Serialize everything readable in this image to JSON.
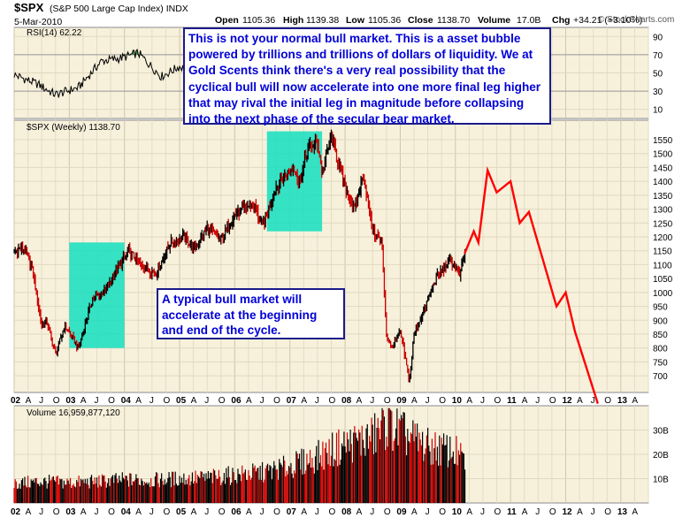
{
  "header": {
    "symbol": "$SPX",
    "description": "(S&P 500 Large Cap Index) INDX",
    "date": "5-Mar-2010",
    "open_label": "Open",
    "open": "1105.36",
    "high_label": "High",
    "high": "1139.38",
    "low_label": "Low",
    "low": "1105.36",
    "close_label": "Close",
    "close": "1138.70",
    "volume_label": "Volume",
    "volume": "17.0B",
    "chg_label": "Chg",
    "chg": "+34.21 (+3.10%)",
    "brand": "© StockCharts.com"
  },
  "annotations": {
    "top": "This is not your normal bull market. This is a asset bubble powered by trillions and trillions of dollars of liquidity. We at Gold Scents think there's a very real possibility that the cyclical bull will now accelerate into one more final leg higher that may rival the initial leg in magnitude before collapsing into the next phase of the secular bear market.",
    "bottom": "A typical bull market will accelerate at the beginning and end of the cycle."
  },
  "chart_data": [
    {
      "type": "line",
      "panel": "rsi",
      "legend": "RSI(14) 62.22",
      "ylim": [
        0,
        100
      ],
      "yticks": [
        10,
        30,
        50,
        70,
        90
      ],
      "reference_lines": [
        30,
        70
      ],
      "x": [
        "2002-01",
        "2002-06",
        "2002-10",
        "2003-03",
        "2003-08",
        "2003-12",
        "2004-04",
        "2004-09",
        "2005-01",
        "2005-05",
        "2005-10"
      ],
      "values": [
        48,
        38,
        26,
        34,
        63,
        66,
        72,
        46,
        57,
        49,
        60
      ],
      "colors": {
        "line": "#000000",
        "overbought_fill": "#2e8b2e"
      }
    },
    {
      "type": "line",
      "panel": "price",
      "legend": "$SPX (Weekly) 1138.70",
      "ylim": [
        640,
        1620
      ],
      "yticks": [
        700,
        750,
        800,
        850,
        900,
        950,
        1000,
        1050,
        1100,
        1150,
        1200,
        1250,
        1300,
        1350,
        1400,
        1450,
        1500,
        1550
      ],
      "series": [
        {
          "role": "history",
          "x": [
            "2002-01",
            "2002-03",
            "2002-05",
            "2002-07",
            "2002-08",
            "2002-10",
            "2002-12",
            "2003-03",
            "2003-06",
            "2003-09",
            "2003-12",
            "2004-02",
            "2004-05",
            "2004-08",
            "2004-11",
            "2005-02",
            "2005-04",
            "2005-07",
            "2005-10",
            "2006-01",
            "2006-05",
            "2006-07",
            "2006-10",
            "2006-12",
            "2007-02",
            "2007-03",
            "2007-05",
            "2007-07",
            "2007-08",
            "2007-10",
            "2008-01",
            "2008-03",
            "2008-05",
            "2008-07",
            "2008-09",
            "2008-10",
            "2008-11",
            "2009-01",
            "2009-03",
            "2009-04",
            "2009-06",
            "2009-09",
            "2009-12",
            "2010-02",
            "2010-03"
          ],
          "values": [
            1150,
            1160,
            1080,
            880,
            900,
            780,
            880,
            800,
            975,
            1010,
            1100,
            1150,
            1090,
            1070,
            1180,
            1200,
            1160,
            1230,
            1190,
            1280,
            1320,
            1240,
            1380,
            1420,
            1450,
            1390,
            1520,
            1540,
            1430,
            1560,
            1380,
            1300,
            1420,
            1220,
            1180,
            850,
            800,
            860,
            680,
            850,
            930,
            1060,
            1115,
            1060,
            1140
          ]
        },
        {
          "role": "projection",
          "x": [
            "2010-03",
            "2010-05",
            "2010-06",
            "2010-08",
            "2010-10",
            "2011-01",
            "2011-03",
            "2011-05",
            "2011-08",
            "2011-11",
            "2012-01",
            "2012-03",
            "2012-08"
          ],
          "values": [
            1140,
            1220,
            1180,
            1440,
            1360,
            1400,
            1250,
            1290,
            1120,
            950,
            1000,
            860,
            600
          ]
        }
      ],
      "highlight_boxes": [
        {
          "x": [
            "2003-01",
            "2004-01"
          ],
          "y": [
            800,
            1180
          ]
        },
        {
          "x": [
            "2006-08",
            "2007-08"
          ],
          "y": [
            1220,
            1580
          ]
        }
      ],
      "colors": {
        "history": "#000000",
        "down_bars": "#cc0000",
        "projection": "#ff0000",
        "highlight": "#1fe0c0",
        "background": "#f7f1dc"
      }
    },
    {
      "type": "bar",
      "panel": "volume",
      "legend": "Volume 16,959,877,120",
      "ylim": [
        0,
        40
      ],
      "yticks": [
        "10B",
        "20B",
        "30B"
      ],
      "x": [
        "2002-01",
        "2002-07",
        "2003-01",
        "2003-07",
        "2004-01",
        "2004-07",
        "2005-01",
        "2005-07",
        "2006-01",
        "2006-07",
        "2007-01",
        "2007-07",
        "2008-01",
        "2008-07",
        "2008-10",
        "2009-01",
        "2009-07",
        "2010-01",
        "2010-03"
      ],
      "values": [
        8,
        8.8,
        8.3,
        8.8,
        9.5,
        9.3,
        10,
        10.3,
        11.5,
        12.5,
        15,
        19,
        24,
        27,
        33,
        29,
        23,
        21,
        17
      ],
      "colors": {
        "up": "#000000",
        "down": "#cc0000"
      }
    }
  ],
  "x_axis": {
    "year_labels": [
      "02",
      "03",
      "04",
      "05",
      "06",
      "07",
      "08",
      "09",
      "10",
      "11",
      "12",
      "13"
    ],
    "month_letters": [
      "A",
      "J",
      "O"
    ]
  }
}
